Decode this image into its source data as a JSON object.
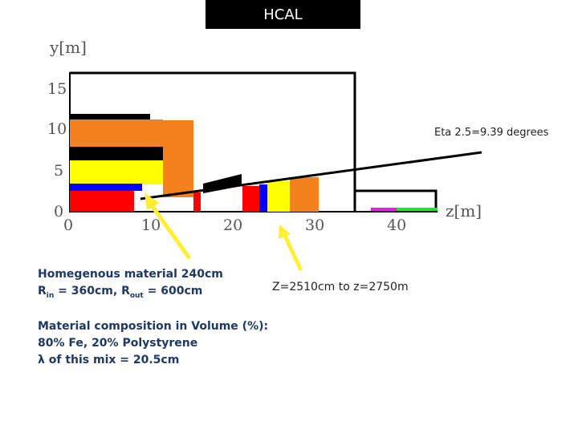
{
  "title": "HCAL",
  "axes": {
    "y_label": "y[m]",
    "z_label": "z[m]",
    "y_ticks": [
      "0",
      "5",
      "10",
      "15"
    ],
    "z_ticks": [
      "0",
      "10",
      "20",
      "30",
      "40"
    ]
  },
  "eta_label": "Eta 2.5=9.39 degrees",
  "z_range_label": "Z=2510cm to z=2750m",
  "homogeneous": {
    "line1": "Homegenous material 240cm",
    "r_in_prefix": "R",
    "r_in_sub": "in",
    "r_in_value": " = 360cm,  ",
    "r_out_prefix": "R",
    "r_out_sub": "out",
    "r_out_value": " = 600cm"
  },
  "composition": {
    "line1": "Material composition in Volume (%):",
    "line2": "80% Fe, 20% Polystyrene",
    "line3": "λ of this mix = 20.5cm"
  },
  "colors": {
    "orange": "#f5801e",
    "yellow": "#ffff00",
    "blue": "#0000ff",
    "red": "#ff0000",
    "arrow": "#ffee33",
    "text_blue": "#1f3864"
  }
}
